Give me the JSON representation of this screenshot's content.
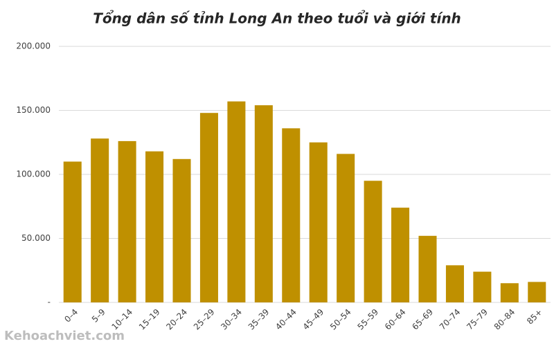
{
  "chart_data": {
    "type": "bar",
    "title": "Tổng dân số tỉnh Long An theo tuổi và giới tính",
    "categories": [
      "0–4",
      "5–9",
      "10–14",
      "15–19",
      "20–24",
      "25–29",
      "30–34",
      "35–39",
      "40–44",
      "45–49",
      "50–54",
      "55–59",
      "60–64",
      "65–69",
      "70–74",
      "75–79",
      "80–84",
      "85+"
    ],
    "values": [
      110000,
      128000,
      126000,
      118000,
      112000,
      148000,
      157000,
      154000,
      136000,
      125000,
      116000,
      95000,
      74000,
      52000,
      29000,
      24000,
      15000,
      16000
    ],
    "color": "#bf9000",
    "ylim": [
      0,
      200000
    ],
    "yticks": [
      {
        "value": 0,
        "label": "-"
      },
      {
        "value": 50000,
        "label": "50.000"
      },
      {
        "value": 100000,
        "label": "100.000"
      },
      {
        "value": 150000,
        "label": "150.000"
      },
      {
        "value": 200000,
        "label": "200.000"
      }
    ],
    "grid": true,
    "watermark": "Kehoachviet.com"
  }
}
